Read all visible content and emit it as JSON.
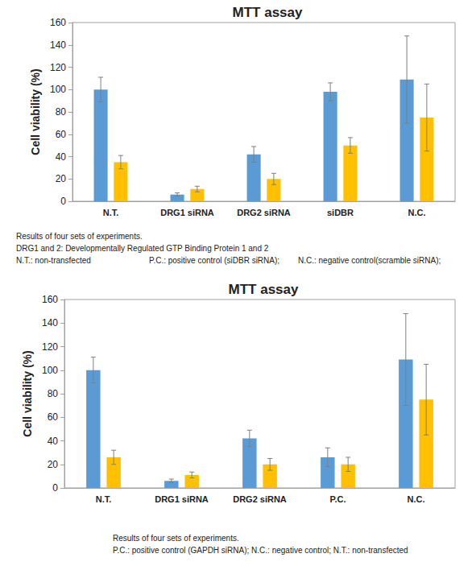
{
  "chart_data": [
    {
      "type": "bar",
      "title": "MTT assay",
      "y_label": "Cell viability (%)",
      "categories": [
        "N.T.",
        "DRG1 siRNA",
        "DRG2 siRNA",
        "siDBR",
        "N.C."
      ],
      "series": [
        {
          "color": "#5b9bd5",
          "values": [
            100,
            6,
            42,
            98,
            109
          ],
          "errors": [
            11,
            1.5,
            7,
            8,
            39
          ]
        },
        {
          "color": "#ffc000",
          "values": [
            35,
            11,
            20,
            50,
            75
          ],
          "errors": [
            6,
            2.5,
            5,
            7,
            30
          ]
        }
      ],
      "ylim": [
        0,
        160
      ],
      "yticks": [
        0,
        20,
        40,
        60,
        80,
        100,
        120,
        140,
        160
      ],
      "grid": false,
      "annotations": [
        [
          "Results of four sets of experiments."
        ],
        [
          "DRG1 and 2: Developmentally Regulated GTP Binding Protein 1 and 2"
        ],
        [
          "N.T.: non-transfected",
          "P.C.: positive control (siDBR siRNA);",
          "N.C.: negative control(scramble siRNA);"
        ]
      ]
    },
    {
      "type": "bar",
      "title": "MTT assay",
      "y_label": "Cell viability (%)",
      "categories": [
        "N.T.",
        "DRG1 siRNA",
        "DRG2 siRNA",
        "P.C.",
        "N.C."
      ],
      "series": [
        {
          "color": "#5b9bd5",
          "values": [
            100,
            6,
            42,
            26,
            109
          ],
          "errors": [
            11,
            1.5,
            7,
            8,
            39
          ]
        },
        {
          "color": "#ffc000",
          "values": [
            26,
            11,
            20,
            20,
            75
          ],
          "errors": [
            6,
            2.5,
            5,
            6,
            30
          ]
        }
      ],
      "ylim": [
        0,
        160
      ],
      "yticks": [
        0,
        20,
        40,
        60,
        80,
        100,
        120,
        140,
        160
      ],
      "grid": false,
      "annotations": [
        [
          "Results of four sets of experiments."
        ],
        [
          "P.C.: positive control (GAPDH siRNA); N.C.: negative control; N.T.: non-transfected"
        ]
      ]
    }
  ]
}
